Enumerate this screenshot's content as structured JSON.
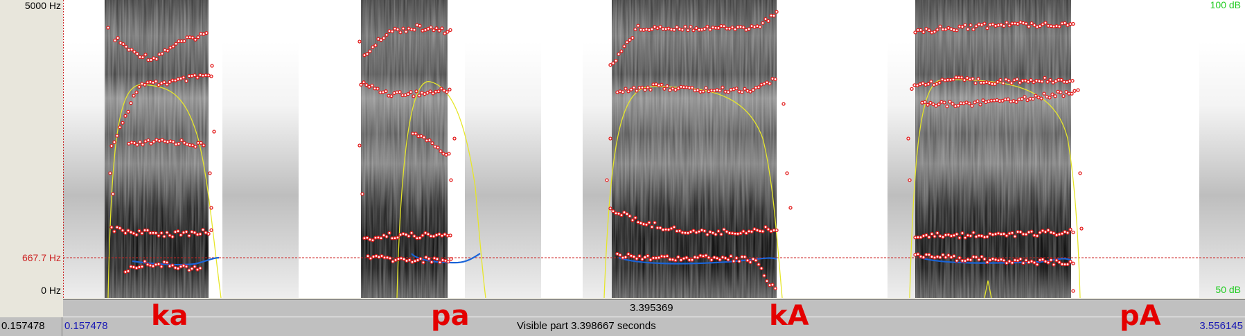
{
  "axis": {
    "freq_top": "5000 Hz",
    "freq_cursor": "667.7 Hz",
    "freq_bottom": "0 Hz",
    "db_top": "100 dB",
    "db_bottom": "50 dB"
  },
  "segments": {
    "interval_duration": "3.395369"
  },
  "status": {
    "cursor_time": "0.157478",
    "start_time": "0.157478",
    "visible_part": "Visible part 3.398667 seconds",
    "end_time": "3.556145"
  },
  "syllables": [
    "ka",
    "pa",
    "kA",
    "pA"
  ],
  "colors": {
    "formant": "#e31a1a",
    "pitch": "#1a64d8",
    "intensity": "#e6e62a",
    "cursor_label": "#cc2222",
    "time_blue": "#1a1ab4",
    "db_green": "#22cc22",
    "syllable_red": "#e40000"
  },
  "icons": {
    "formant_marker": "red-hollow-circle",
    "pitch_line": "blue-curve",
    "intensity_line": "yellow-curve"
  }
}
